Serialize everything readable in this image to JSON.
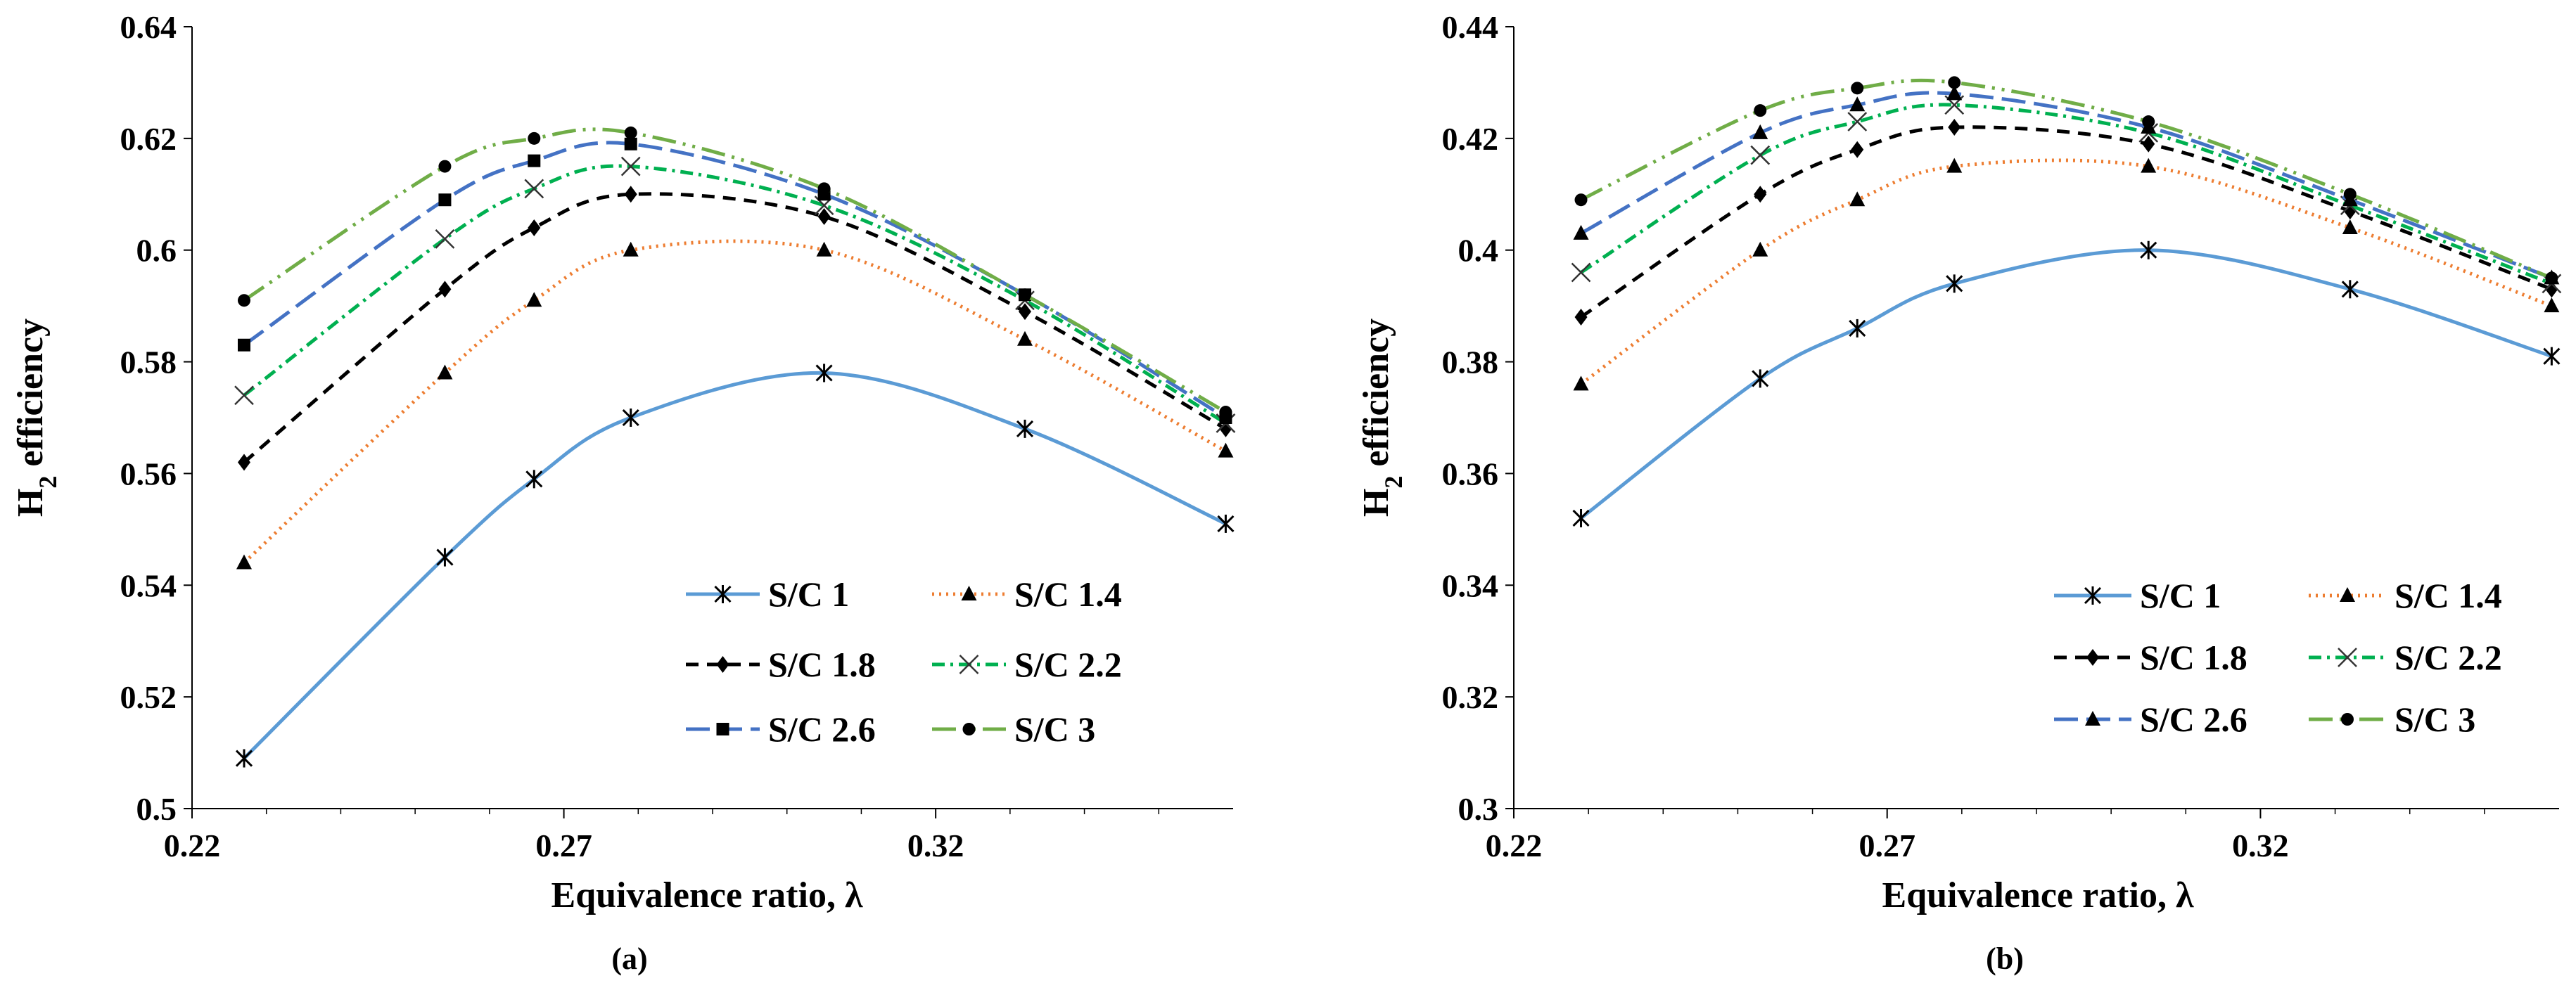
{
  "chart_data": [
    {
      "type": "line",
      "caption": "(a)",
      "xlabel": "Equivalence ratio, λ",
      "ylabel_main": "H",
      "ylabel_sub": "2",
      "ylabel_rest": " efficiency",
      "xlim": [
        0.22,
        0.36
      ],
      "ylim": [
        0.5,
        0.64
      ],
      "xticks": [
        "0.22",
        "0.27",
        "0.32"
      ],
      "xtick_values": [
        0.22,
        0.27,
        0.32
      ],
      "yticks": [
        "0.5",
        "0.52",
        "0.54",
        "0.56",
        "0.58",
        "0.6",
        "0.62",
        "0.64"
      ],
      "ytick_values": [
        0.5,
        0.52,
        0.54,
        0.56,
        0.58,
        0.6,
        0.62,
        0.64
      ],
      "x": [
        0.227,
        0.254,
        0.266,
        0.279,
        0.305,
        0.332,
        0.359
      ],
      "series": [
        {
          "name": "S/C 1",
          "color": "#5B9BD5",
          "marker": "star",
          "dash": "",
          "values": [
            0.509,
            0.545,
            0.559,
            0.57,
            0.578,
            0.568,
            0.551
          ]
        },
        {
          "name": "S/C 1.4",
          "color": "#ED7D31",
          "marker": "triangle",
          "dash": "3 7",
          "values": [
            0.544,
            0.578,
            0.591,
            0.6,
            0.6,
            0.584,
            0.564
          ]
        },
        {
          "name": "S/C 1.8",
          "color": "#000000",
          "marker": "diamond",
          "dash": "18 12",
          "values": [
            0.562,
            0.593,
            0.604,
            0.61,
            0.606,
            0.589,
            0.568
          ]
        },
        {
          "name": "S/C 2.2",
          "color": "#00B050",
          "marker": "x",
          "dash": "18 8 4 8",
          "values": [
            0.574,
            0.602,
            0.611,
            0.615,
            0.608,
            0.591,
            0.569
          ]
        },
        {
          "name": "S/C 2.6",
          "color": "#4472C4",
          "marker": "square",
          "dash": "34 12",
          "values": [
            0.583,
            0.609,
            0.616,
            0.619,
            0.61,
            0.592,
            0.57
          ]
        },
        {
          "name": "S/C 3",
          "color": "#70AD47",
          "marker": "circle",
          "dash": "34 10 4 10 4 10",
          "values": [
            0.591,
            0.615,
            0.62,
            0.621,
            0.611,
            0.592,
            0.571
          ]
        }
      ]
    },
    {
      "type": "line",
      "caption": "(b)",
      "xlabel": "Equivalence ratio, λ",
      "ylabel_main": "H",
      "ylabel_sub": "2",
      "ylabel_rest": " efficiency",
      "xlim": [
        0.22,
        0.36
      ],
      "ylim": [
        0.3,
        0.44
      ],
      "xticks": [
        "0.22",
        "0.27",
        "0.32"
      ],
      "xtick_values": [
        0.22,
        0.27,
        0.32
      ],
      "yticks": [
        "0.3",
        "0.32",
        "0.34",
        "0.36",
        "0.38",
        "0.4",
        "0.42",
        "0.44"
      ],
      "ytick_values": [
        0.3,
        0.32,
        0.34,
        0.36,
        0.38,
        0.4,
        0.42,
        0.44
      ],
      "x": [
        0.229,
        0.253,
        0.266,
        0.279,
        0.305,
        0.332,
        0.359
      ],
      "series": [
        {
          "name": "S/C 1",
          "color": "#5B9BD5",
          "marker": "star",
          "dash": "",
          "values": [
            0.352,
            0.377,
            0.386,
            0.394,
            0.4,
            0.393,
            0.381
          ]
        },
        {
          "name": "S/C 1.4",
          "color": "#ED7D31",
          "marker": "triangle",
          "dash": "3 7",
          "values": [
            0.376,
            0.4,
            0.409,
            0.415,
            0.415,
            0.404,
            0.39
          ]
        },
        {
          "name": "S/C 1.8",
          "color": "#000000",
          "marker": "diamond",
          "dash": "18 12",
          "values": [
            0.388,
            0.41,
            0.418,
            0.422,
            0.419,
            0.407,
            0.393
          ]
        },
        {
          "name": "S/C 2.2",
          "color": "#00B050",
          "marker": "x",
          "dash": "18 8 4 8",
          "values": [
            0.396,
            0.417,
            0.423,
            0.426,
            0.421,
            0.408,
            0.394
          ]
        },
        {
          "name": "S/C 2.6",
          "color": "#4472C4",
          "marker": "triangle",
          "dash": "34 12",
          "values": [
            0.403,
            0.421,
            0.426,
            0.428,
            0.422,
            0.409,
            0.395
          ]
        },
        {
          "name": "S/C 3",
          "color": "#70AD47",
          "marker": "circle",
          "dash": "34 10 4 10 4 10",
          "values": [
            0.409,
            0.425,
            0.429,
            0.43,
            0.423,
            0.41,
            0.395
          ]
        }
      ]
    }
  ]
}
